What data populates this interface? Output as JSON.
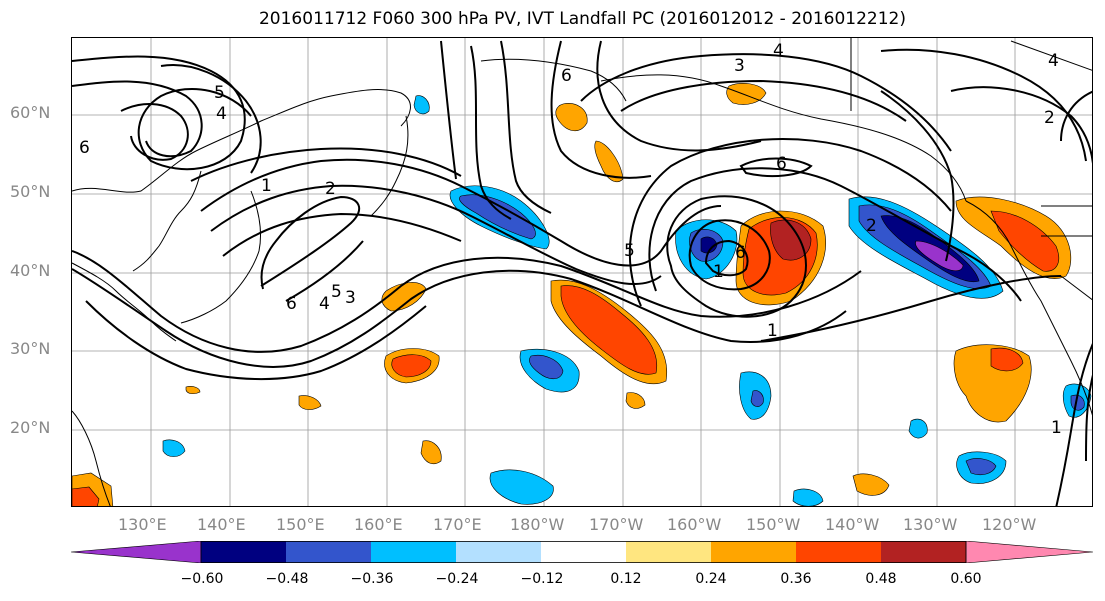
{
  "title": "2016011712 F060 300 hPa PV, IVT Landfall PC (2016012012 - 2016012212)",
  "lat_labels": [
    "60°N",
    "50°N",
    "40°N",
    "30°N",
    "20°N"
  ],
  "lon_labels": [
    "130°E",
    "140°E",
    "150°E",
    "160°E",
    "170°E",
    "180°W",
    "170°W",
    "160°W",
    "150°W",
    "140°W",
    "130°W",
    "120°W"
  ],
  "contour_labels": [
    "1",
    "2",
    "3",
    "4",
    "5",
    "6"
  ],
  "colorbar": {
    "ticks": [
      "−0.60",
      "−0.48",
      "−0.36",
      "−0.24",
      "−0.12",
      "0.12",
      "0.24",
      "0.36",
      "0.48",
      "0.60"
    ],
    "colors": [
      "#9933cc",
      "#000080",
      "#3355cc",
      "#00bfff",
      "#b3e0ff",
      "#ffffff",
      "#ffe680",
      "#ffa500",
      "#ff4500",
      "#b22222",
      "#ff88b0"
    ]
  }
}
